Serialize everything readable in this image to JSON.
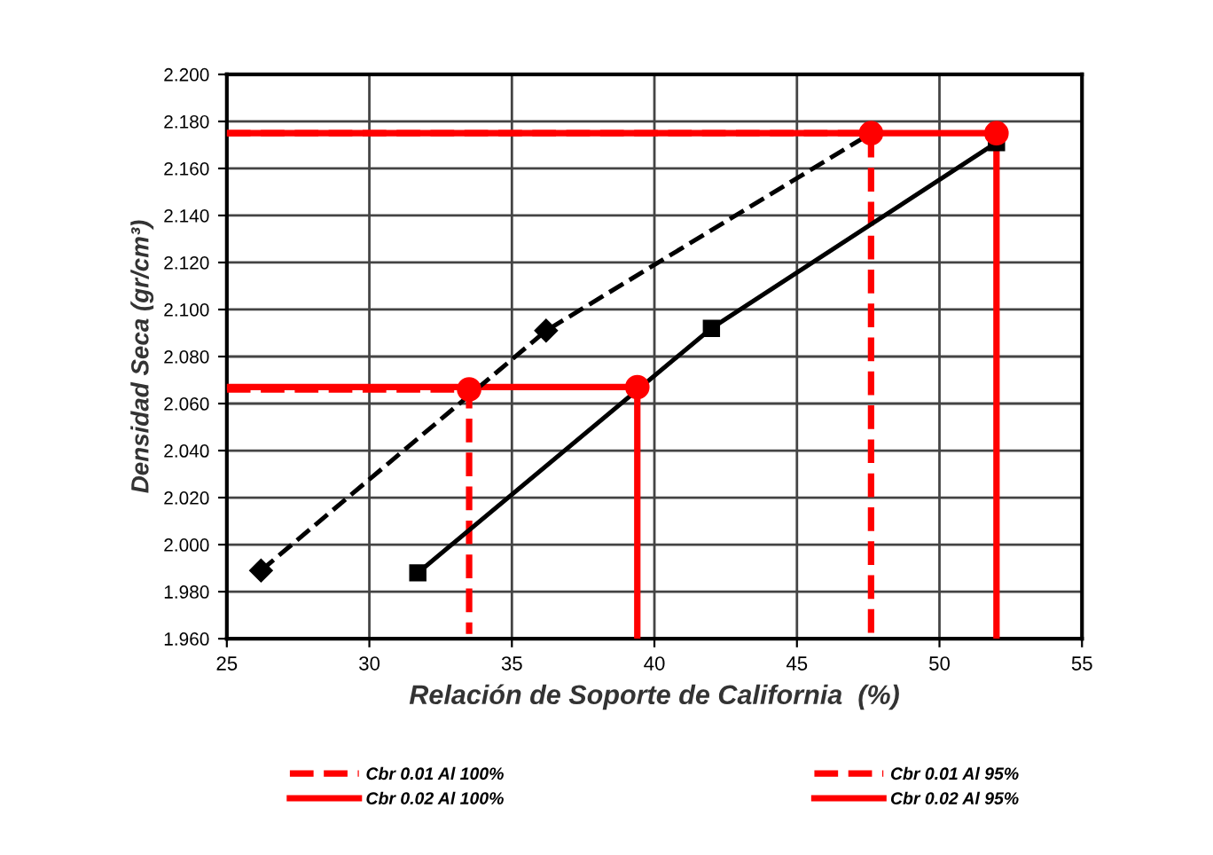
{
  "chart_data": {
    "type": "line",
    "xlabel": "Relación de Soporte de California  (%)",
    "ylabel": "Densidad Seca (gr/cm³)",
    "xlim": [
      25,
      55
    ],
    "xticks": [
      25,
      30,
      35,
      40,
      45,
      50,
      55
    ],
    "ylim": [
      1.96,
      2.2
    ],
    "yticks": [
      {
        "value": 1.96,
        "label": "1.960"
      },
      {
        "value": 1.98,
        "label": "1.980"
      },
      {
        "value": 2.0,
        "label": "2.000"
      },
      {
        "value": 2.02,
        "label": "2.020"
      },
      {
        "value": 2.04,
        "label": "2.040"
      },
      {
        "value": 2.06,
        "label": "2.060"
      },
      {
        "value": 2.08,
        "label": "2.080"
      },
      {
        "value": 2.1,
        "label": "2.100"
      },
      {
        "value": 2.12,
        "label": "2.120"
      },
      {
        "value": 2.14,
        "label": "2.140"
      },
      {
        "value": 2.16,
        "label": "2.160"
      },
      {
        "value": 2.18,
        "label": "2.180"
      },
      {
        "value": 2.2,
        "label": "2.200"
      }
    ],
    "grid": true,
    "legend": "bottom",
    "series": [
      {
        "color": "#000000",
        "line_style": "dashed",
        "marker": "diamond",
        "x": [
          26.2,
          36.2,
          47.6
        ],
        "values": [
          1.989,
          2.091,
          2.175
        ]
      },
      {
        "color": "#000000",
        "line_style": "solid",
        "marker": "square",
        "x": [
          31.7,
          42,
          52
        ],
        "values": [
          1.988,
          2.092,
          2.171
        ]
      },
      {
        "name": "Cbr 0.01 Al 100%",
        "color": "#ff0000",
        "line_style": "dashed",
        "x": [
          25,
          47.6,
          47.6
        ],
        "values": [
          2.175,
          2.175,
          1.96
        ]
      },
      {
        "name": "Cbr 0.02 Al 100%",
        "color": "#ff0000",
        "line_style": "solid",
        "x": [
          25,
          52,
          52
        ],
        "values": [
          2.175,
          2.175,
          1.96
        ]
      },
      {
        "name": "Cbr 0.01 Al 95%",
        "color": "#ff0000",
        "line_style": "dashed",
        "x": [
          25,
          33.5,
          33.5
        ],
        "values": [
          2.066,
          2.066,
          1.962
        ]
      },
      {
        "name": "Cbr 0.02 Al 95%",
        "color": "#ff0000",
        "line_style": "solid",
        "x": [
          25,
          39.4,
          39.4
        ],
        "values": [
          2.067,
          2.067,
          1.96
        ]
      },
      {
        "type": "scatter",
        "color": "#ff0000",
        "marker": "circle",
        "x": [
          47.6,
          52,
          33.5,
          39.4
        ],
        "values": [
          2.175,
          2.175,
          2.066,
          2.067
        ]
      }
    ]
  }
}
